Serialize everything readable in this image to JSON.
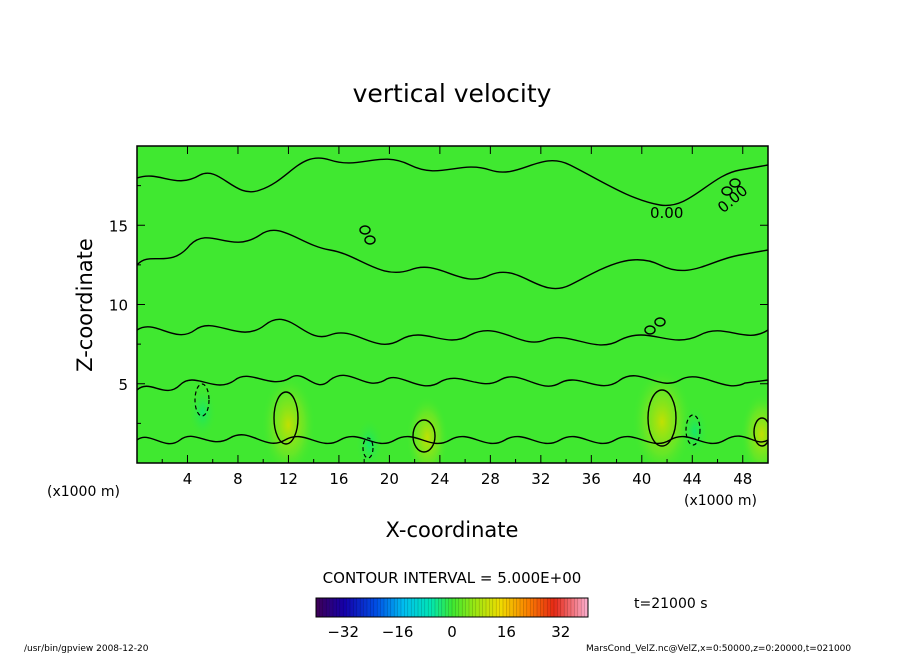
{
  "chart_data": {
    "type": "heatmap",
    "title": "vertical velocity",
    "xlabel": "X-coordinate",
    "ylabel": "Z-coordinate",
    "x_unit_left": "(x1000 m)",
    "x_unit_right": "(x1000 m)",
    "xlim": [
      0,
      50
    ],
    "ylim": [
      0,
      20
    ],
    "x_ticks": [
      4,
      8,
      12,
      16,
      20,
      24,
      28,
      32,
      36,
      40,
      44,
      48
    ],
    "y_ticks": [
      5,
      10,
      15
    ],
    "x_tick_labels": [
      "4",
      "8",
      "12",
      "16",
      "20",
      "24",
      "28",
      "32",
      "36",
      "40",
      "44",
      "48"
    ],
    "y_tick_labels": [
      "5",
      "10",
      "15"
    ],
    "contour_interval_text": "CONTOUR INTERVAL = 5.000E+00",
    "contour_labels": [
      "0.00",
      "0.00"
    ],
    "time_text": "t=21000 s",
    "colorbar": {
      "min": -40,
      "max": 40,
      "tick_values": [
        -32,
        -16,
        0,
        16,
        32
      ],
      "tick_labels": [
        "−32",
        "−16",
        "0",
        "16",
        "32"
      ]
    },
    "positive_cells": [
      {
        "x": 12,
        "z": 2.4,
        "value": 10
      },
      {
        "x": 23,
        "z": 1.6,
        "value": 6
      },
      {
        "x": 41.6,
        "z": 2.6,
        "value": 12
      },
      {
        "x": 49.5,
        "z": 1.8,
        "value": 6
      }
    ],
    "negative_cells": [
      {
        "x": 5.2,
        "z": 3.2,
        "value": -5
      },
      {
        "x": 18.4,
        "z": 1.2,
        "value": -5
      },
      {
        "x": 44.2,
        "z": 2.0,
        "value": -5
      }
    ],
    "footer_left": "/usr/bin/gpview  2008-12-20",
    "footer_right": "MarsCond_VelZ.nc@VelZ,x=0:50000,z=0:20000,t=021000"
  }
}
